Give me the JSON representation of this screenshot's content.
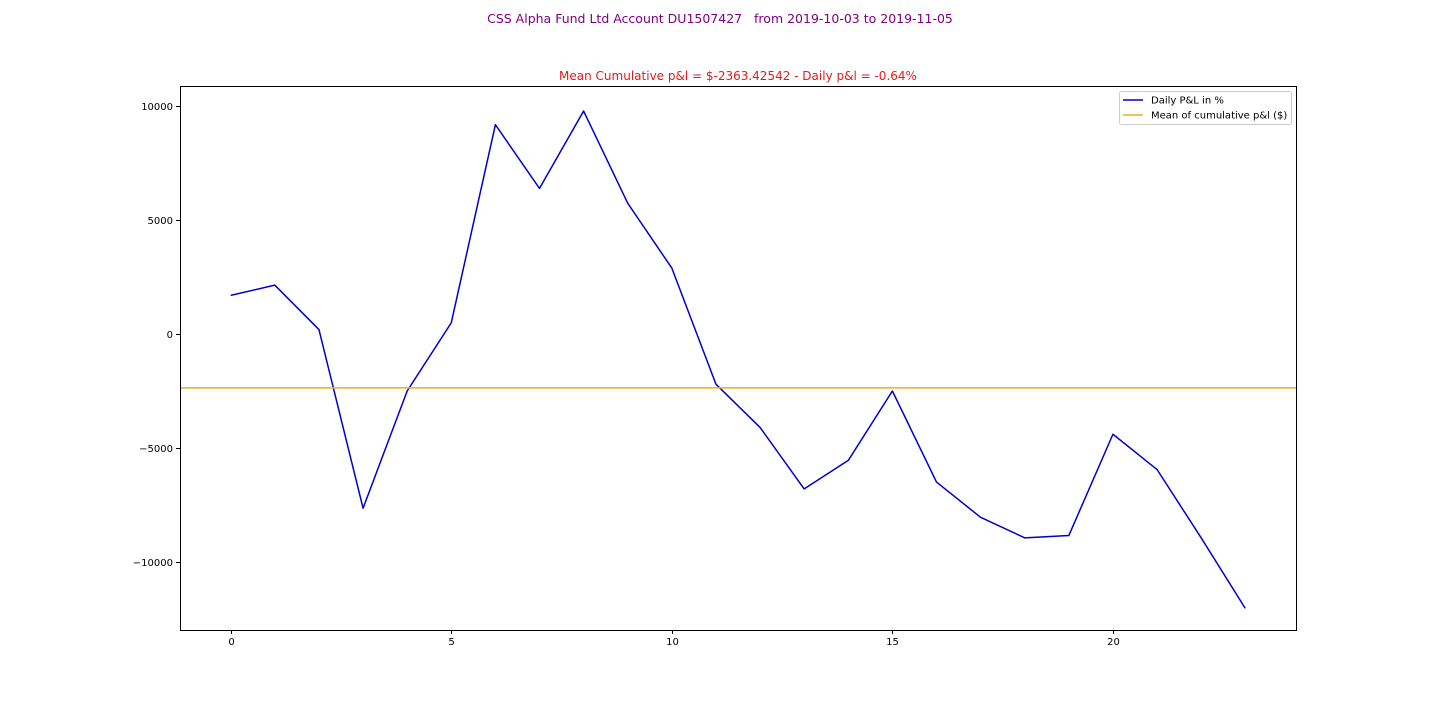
{
  "figure": {
    "suptitle": "CSS Alpha Fund Ltd Account DU1507427   from 2019-10-03 to 2019-11-05"
  },
  "chart_data": {
    "type": "line",
    "title": "Mean Cumulative p&l = $-2363.42542 - Daily p&l = -0.64%",
    "title_color": "#e31a1c",
    "suptitle_color": "#800080",
    "xlabel": "",
    "ylabel": "",
    "xlim": [
      -1.15,
      24.15
    ],
    "ylim": [
      -13000,
      10900
    ],
    "xticks": [
      0,
      5,
      10,
      15,
      20
    ],
    "xtick_labels": [
      "0",
      "5",
      "10",
      "15",
      "20"
    ],
    "yticks": [
      -10000,
      -5000,
      0,
      5000,
      10000
    ],
    "ytick_labels": [
      "−10000",
      "−5000",
      "0",
      "5000",
      "10000"
    ],
    "grid": false,
    "legend_position": "upper right",
    "series": [
      {
        "name": "Daily P&L in %",
        "color": "#0000cc",
        "x": [
          0,
          1,
          2,
          3,
          4,
          5,
          6,
          7,
          8,
          9,
          10,
          11,
          12,
          13,
          14,
          15,
          16,
          17,
          18,
          19,
          20,
          21,
          22,
          23
        ],
        "y": [
          1700,
          2150,
          200,
          -7650,
          -2500,
          500,
          9200,
          6400,
          9800,
          5750,
          2900,
          -2200,
          -4100,
          -6800,
          -5550,
          -2500,
          -6500,
          -8050,
          -8950,
          -8850,
          -4400,
          -5950,
          -8950,
          -12050
        ]
      },
      {
        "name": "Mean of cumulative p&l ($)",
        "color": "#e8b020",
        "type": "hline",
        "y": -2363.42542
      }
    ]
  }
}
